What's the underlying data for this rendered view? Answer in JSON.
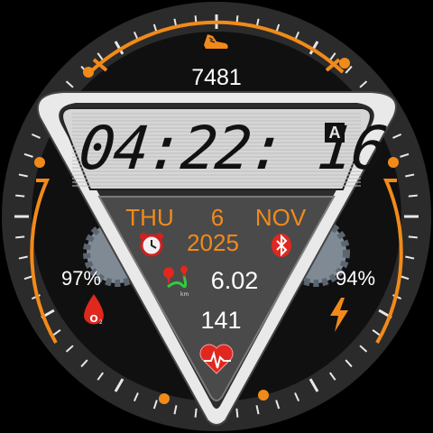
{
  "colors": {
    "accent": "#f28a1a",
    "bezel": "#2a2a2a",
    "face": "#0f0f0f",
    "panel": "#d6d6d6",
    "red": "#e0281f"
  },
  "steps": {
    "value": "7481",
    "icon": "shoe-icon"
  },
  "time": {
    "display": "04:22: 16",
    "ampm": "A"
  },
  "date": {
    "weekday": "THU",
    "day": "6",
    "month": "NOV",
    "year": "2025"
  },
  "icons": {
    "alarm": "alarm-clock-icon",
    "bluetooth": "bluetooth-icon",
    "distance": "route-map-icon",
    "heart": "heart-rate-icon",
    "spo2": "blood-oxygen-icon",
    "battery": "lightning-bolt-icon"
  },
  "distance": {
    "value": "6.02"
  },
  "heart_rate": {
    "value": "141"
  },
  "spo2": {
    "value": "97%"
  },
  "battery": {
    "value": "94%"
  }
}
